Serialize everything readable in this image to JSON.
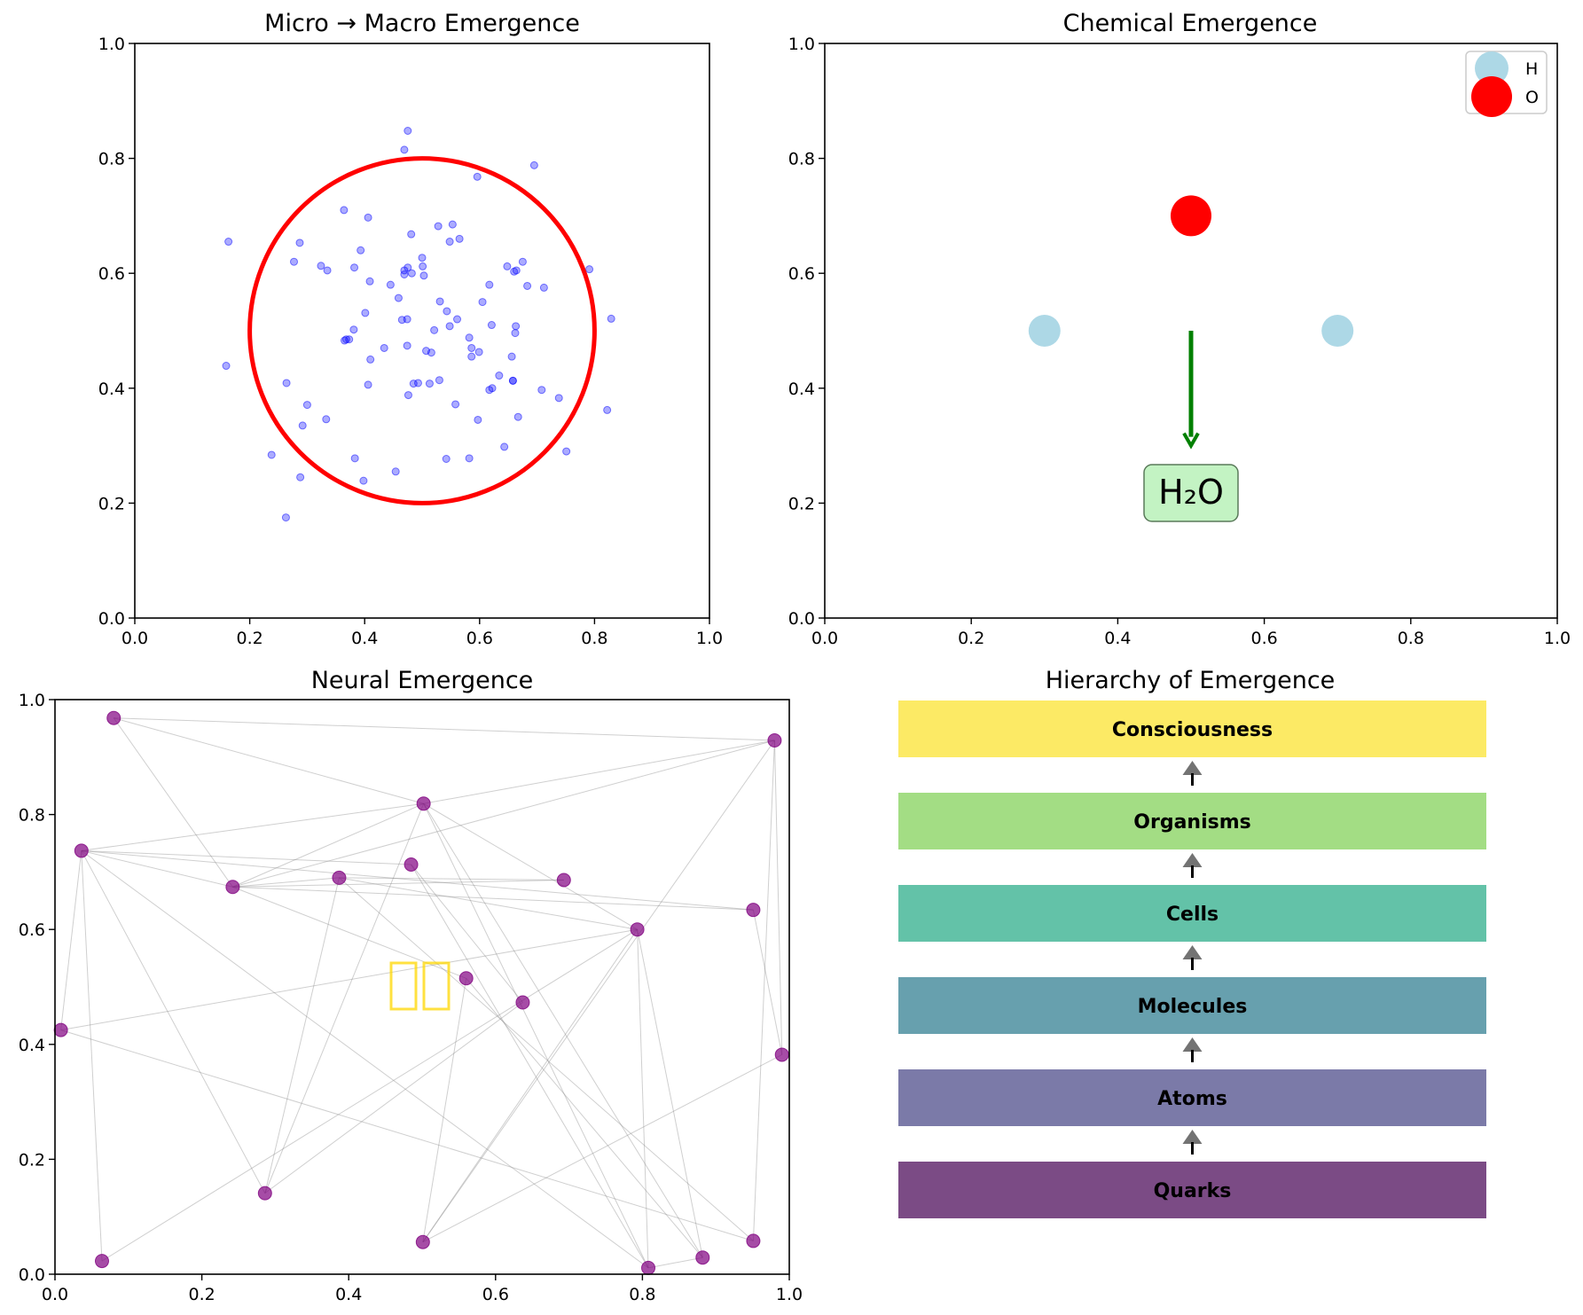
{
  "chart_data": [
    {
      "type": "scatter",
      "title": "Micro → Macro Emergence",
      "xlim": [
        0,
        1
      ],
      "ylim": [
        0,
        1
      ],
      "xticks": [
        "0.0",
        "0.2",
        "0.4",
        "0.6",
        "0.8",
        "1.0"
      ],
      "yticks": [
        "0.0",
        "0.2",
        "0.4",
        "0.6",
        "0.8",
        "1.0"
      ],
      "grid": false,
      "points_color": "#0000ff",
      "circle": {
        "center": [
          0.5,
          0.5
        ],
        "radius": 0.3,
        "color": "#ff0000"
      },
      "x": [
        0.475,
        0.469,
        0.596,
        0.695,
        0.163,
        0.364,
        0.406,
        0.481,
        0.553,
        0.528,
        0.565,
        0.548,
        0.287,
        0.393,
        0.277,
        0.5,
        0.324,
        0.382,
        0.475,
        0.469,
        0.501,
        0.648,
        0.664,
        0.675,
        0.503,
        0.66,
        0.791,
        0.335,
        0.409,
        0.445,
        0.617,
        0.712,
        0.683,
        0.459,
        0.531,
        0.605,
        0.582,
        0.474,
        0.561,
        0.401,
        0.543,
        0.663,
        0.548,
        0.373,
        0.621,
        0.521,
        0.662,
        0.368,
        0.365,
        0.381,
        0.586,
        0.474,
        0.599,
        0.507,
        0.516,
        0.586,
        0.656,
        0.434,
        0.41,
        0.658,
        0.829,
        0.822,
        0.622,
        0.634,
        0.476,
        0.617,
        0.708,
        0.738,
        0.3,
        0.264,
        0.658,
        0.667,
        0.597,
        0.406,
        0.558,
        0.53,
        0.485,
        0.493,
        0.333,
        0.513,
        0.292,
        0.643,
        0.582,
        0.751,
        0.238,
        0.383,
        0.542,
        0.454,
        0.288,
        0.398,
        0.263,
        0.159,
        0.465,
        0.482,
        0.469
      ],
      "y": [
        0.848,
        0.815,
        0.768,
        0.788,
        0.655,
        0.71,
        0.697,
        0.668,
        0.685,
        0.682,
        0.66,
        0.655,
        0.653,
        0.64,
        0.62,
        0.627,
        0.613,
        0.61,
        0.61,
        0.605,
        0.612,
        0.612,
        0.605,
        0.62,
        0.596,
        0.603,
        0.607,
        0.605,
        0.586,
        0.58,
        0.58,
        0.575,
        0.578,
        0.557,
        0.551,
        0.55,
        0.488,
        0.52,
        0.52,
        0.531,
        0.534,
        0.508,
        0.508,
        0.485,
        0.51,
        0.501,
        0.496,
        0.485,
        0.483,
        0.502,
        0.47,
        0.474,
        0.463,
        0.465,
        0.462,
        0.455,
        0.455,
        0.47,
        0.45,
        0.413,
        0.521,
        0.362,
        0.4,
        0.422,
        0.388,
        0.397,
        0.397,
        0.383,
        0.371,
        0.409,
        0.413,
        0.35,
        0.345,
        0.406,
        0.372,
        0.414,
        0.408,
        0.409,
        0.346,
        0.408,
        0.335,
        0.298,
        0.278,
        0.29,
        0.284,
        0.278,
        0.277,
        0.255,
        0.245,
        0.239,
        0.175,
        0.439,
        0.519,
        0.6,
        0.598
      ]
    },
    {
      "type": "scatter",
      "title": "Chemical Emergence",
      "xlim": [
        0,
        1
      ],
      "ylim": [
        0,
        1
      ],
      "xticks": [
        "0.0",
        "0.2",
        "0.4",
        "0.6",
        "0.8",
        "1.0"
      ],
      "yticks": [
        "0.0",
        "0.2",
        "0.4",
        "0.6",
        "0.8",
        "1.0"
      ],
      "grid": false,
      "legend": {
        "position": "top-right",
        "entries": [
          {
            "label": "H",
            "color": "#add8e6"
          },
          {
            "label": "O",
            "color": "#ff0000"
          }
        ]
      },
      "series": [
        {
          "name": "H",
          "color": "#add8e6",
          "points": [
            [
              0.3,
              0.5
            ],
            [
              0.7,
              0.5
            ]
          ]
        },
        {
          "name": "O",
          "color": "#ff0000",
          "points": [
            [
              0.5,
              0.7
            ]
          ]
        }
      ],
      "arrow": {
        "from": [
          0.5,
          0.5
        ],
        "to": [
          0.5,
          0.3
        ],
        "color": "#008000"
      },
      "annotation": {
        "text": "H₂O",
        "at": [
          0.5,
          0.22
        ],
        "box_color": "#90ee90"
      }
    },
    {
      "type": "scatter",
      "title": "Neural Emergence",
      "xlim": [
        0,
        1
      ],
      "ylim": [
        0,
        1
      ],
      "xticks": [
        "0.0",
        "0.2",
        "0.4",
        "0.6",
        "0.8",
        "1.0"
      ],
      "yticks": [
        "0.0",
        "0.2",
        "0.4",
        "0.6",
        "0.8",
        "1.0"
      ],
      "grid": false,
      "node_color": "#800080",
      "edge_color": "#888888",
      "nodes": [
        [
          0.08,
          0.968
        ],
        [
          0.98,
          0.929
        ],
        [
          0.502,
          0.819
        ],
        [
          0.036,
          0.737
        ],
        [
          0.242,
          0.674
        ],
        [
          0.387,
          0.69
        ],
        [
          0.485,
          0.713
        ],
        [
          0.693,
          0.686
        ],
        [
          0.951,
          0.634
        ],
        [
          0.793,
          0.6
        ],
        [
          0.56,
          0.515
        ],
        [
          0.637,
          0.473
        ],
        [
          0.008,
          0.425
        ],
        [
          0.99,
          0.382
        ],
        [
          0.286,
          0.141
        ],
        [
          0.501,
          0.056
        ],
        [
          0.064,
          0.023
        ],
        [
          0.808,
          0.011
        ],
        [
          0.882,
          0.029
        ],
        [
          0.951,
          0.058
        ]
      ],
      "edges": [
        [
          0,
          1
        ],
        [
          0,
          2
        ],
        [
          0,
          4
        ],
        [
          1,
          2
        ],
        [
          1,
          4
        ],
        [
          1,
          13
        ],
        [
          1,
          19
        ],
        [
          1,
          15
        ],
        [
          2,
          3
        ],
        [
          2,
          9
        ],
        [
          2,
          17
        ],
        [
          2,
          18
        ],
        [
          2,
          14
        ],
        [
          2,
          4
        ],
        [
          3,
          4
        ],
        [
          3,
          8
        ],
        [
          3,
          12
        ],
        [
          3,
          14
        ],
        [
          3,
          17
        ],
        [
          3,
          16
        ],
        [
          3,
          6
        ],
        [
          4,
          5
        ],
        [
          4,
          7
        ],
        [
          4,
          8
        ],
        [
          4,
          10
        ],
        [
          5,
          14
        ],
        [
          5,
          9
        ],
        [
          6,
          11
        ],
        [
          6,
          17
        ],
        [
          7,
          5
        ],
        [
          8,
          13
        ],
        [
          9,
          15
        ],
        [
          9,
          17
        ],
        [
          9,
          12
        ],
        [
          9,
          18
        ],
        [
          9,
          16
        ],
        [
          10,
          15
        ],
        [
          10,
          18
        ],
        [
          11,
          14
        ],
        [
          5,
          19
        ],
        [
          17,
          18
        ],
        [
          12,
          19
        ],
        [
          15,
          13
        ]
      ],
      "symbol_text": "□□"
    },
    {
      "type": "bar",
      "title": "Hierarchy of Emergence",
      "categories": [
        "Quarks",
        "Atoms",
        "Molecules",
        "Cells",
        "Organisms",
        "Consciousness"
      ],
      "colors": [
        "#7b4b85",
        "#7b7aa8",
        "#67a0ae",
        "#63c2a8",
        "#a3dd84",
        "#fcea65"
      ]
    }
  ]
}
